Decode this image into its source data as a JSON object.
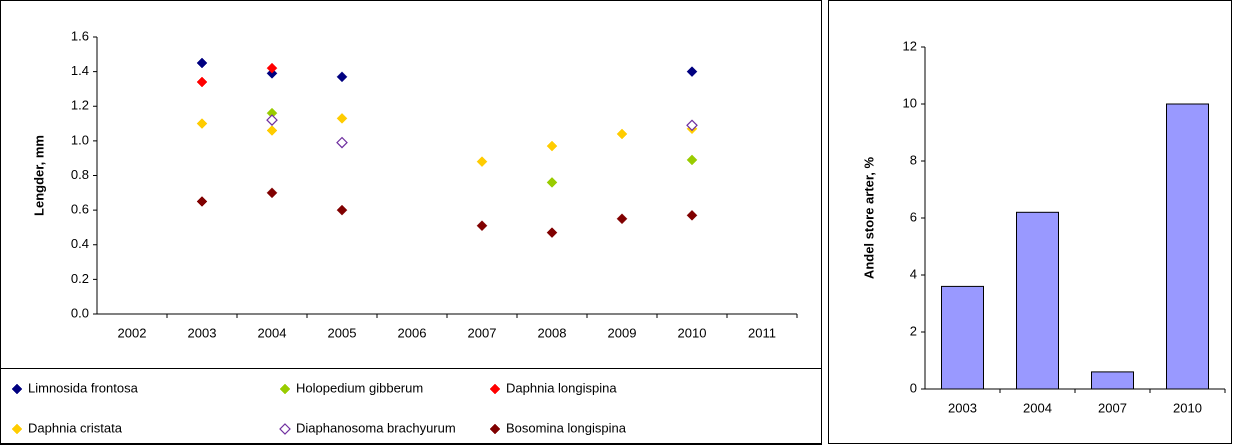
{
  "chart_data": [
    {
      "type": "scatter",
      "y_label": "Lengder, mm",
      "categories": [
        "2002",
        "2003",
        "2004",
        "2005",
        "2006",
        "2007",
        "2008",
        "2009",
        "2010",
        "2011"
      ],
      "ylim": [
        0,
        1.6
      ],
      "yticks": [
        {
          "value": 0,
          "label": "0.0"
        },
        0.2,
        0.4,
        0.6,
        0.8,
        {
          "value": 1,
          "label": "1.0"
        },
        1.2,
        1.4,
        1.6
      ],
      "series": [
        {
          "name": "Limnosida frontosa",
          "color": "#000080",
          "values": [
            null,
            1.45,
            1.39,
            1.37,
            null,
            null,
            null,
            null,
            1.4,
            null
          ]
        },
        {
          "name": "Holopedium gibberum",
          "color": "#99cc00",
          "values": [
            null,
            null,
            1.16,
            null,
            null,
            null,
            0.76,
            null,
            0.89,
            null
          ]
        },
        {
          "name": "Daphnia longispina",
          "color": "#ff0000",
          "values": [
            null,
            1.34,
            1.42,
            null,
            null,
            null,
            null,
            null,
            null,
            null
          ]
        },
        {
          "name": "Daphnia cristata",
          "color": "#ffcc00",
          "values": [
            null,
            1.1,
            1.06,
            1.13,
            null,
            0.88,
            0.97,
            1.04,
            1.07,
            null
          ]
        },
        {
          "name": "Diaphanosoma brachyurum",
          "color": "#7030a0",
          "filled": false,
          "values": [
            null,
            null,
            1.12,
            0.99,
            null,
            null,
            null,
            null,
            1.09,
            null
          ]
        },
        {
          "name": "Bosomina longispina",
          "color": "#800000",
          "values": [
            null,
            0.65,
            0.7,
            0.6,
            null,
            0.51,
            0.47,
            0.55,
            0.57,
            null
          ]
        }
      ]
    },
    {
      "type": "bar",
      "y_label": "Andel store arter, %",
      "categories": [
        "2003",
        "2004",
        "2007",
        "2010"
      ],
      "values": [
        3.6,
        6.2,
        0.6,
        10.0
      ],
      "color": "#9999ff",
      "ylim": [
        0,
        12
      ],
      "yticks": [
        0,
        2,
        4,
        6,
        8,
        10,
        12
      ]
    }
  ]
}
